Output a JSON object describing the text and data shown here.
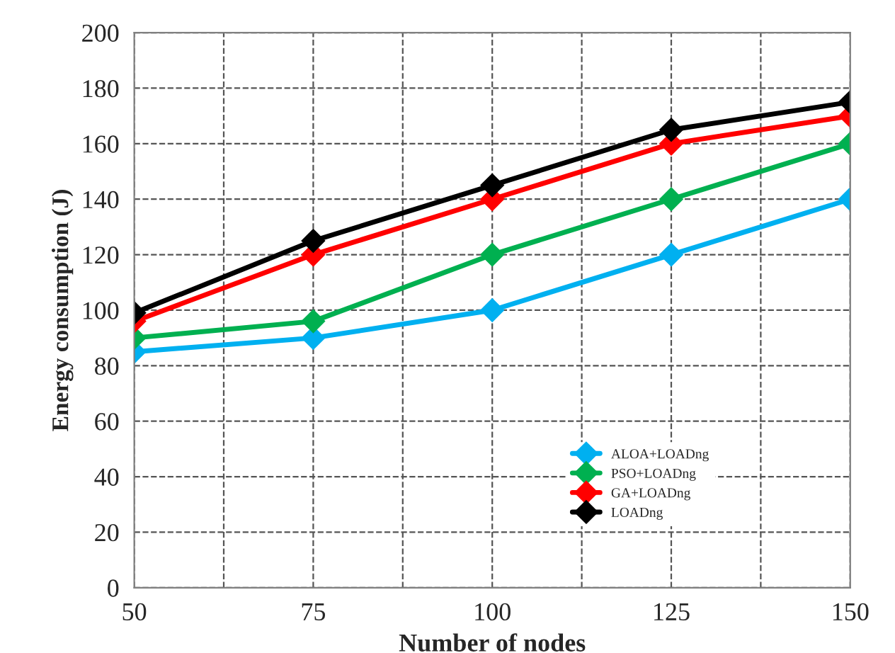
{
  "chart_data": {
    "type": "line",
    "xlabel": "Number of nodes",
    "ylabel": "Energy consumption (J)",
    "x": [
      50,
      75,
      100,
      125,
      150
    ],
    "series": [
      {
        "name": "ALOA+LOADng",
        "color": "#00b0f0",
        "values": [
          85,
          90,
          100,
          120,
          140
        ]
      },
      {
        "name": "PSO+LOADng",
        "color": "#00b050",
        "values": [
          90,
          96,
          120,
          140,
          160
        ]
      },
      {
        "name": "GA+LOADng",
        "color": "#ff0000",
        "values": [
          96,
          120,
          140,
          160,
          170
        ]
      },
      {
        "name": "LOADng",
        "color": "#000000",
        "values": [
          99,
          125,
          145,
          165,
          175
        ]
      }
    ],
    "xlim": [
      50,
      150
    ],
    "xticks": [
      50,
      {
        "value": 62.5,
        "label": null
      },
      75,
      {
        "value": 87.5,
        "label": null
      },
      100,
      {
        "value": 112.5,
        "label": null
      },
      125,
      {
        "value": 137.5,
        "label": null
      },
      150
    ],
    "ylim": [
      0,
      200
    ],
    "yticks": [
      0,
      20,
      40,
      60,
      80,
      100,
      120,
      140,
      160,
      180,
      200
    ],
    "grid": true,
    "legend": "lower right",
    "marker": "diamond",
    "line_style": "solid"
  }
}
